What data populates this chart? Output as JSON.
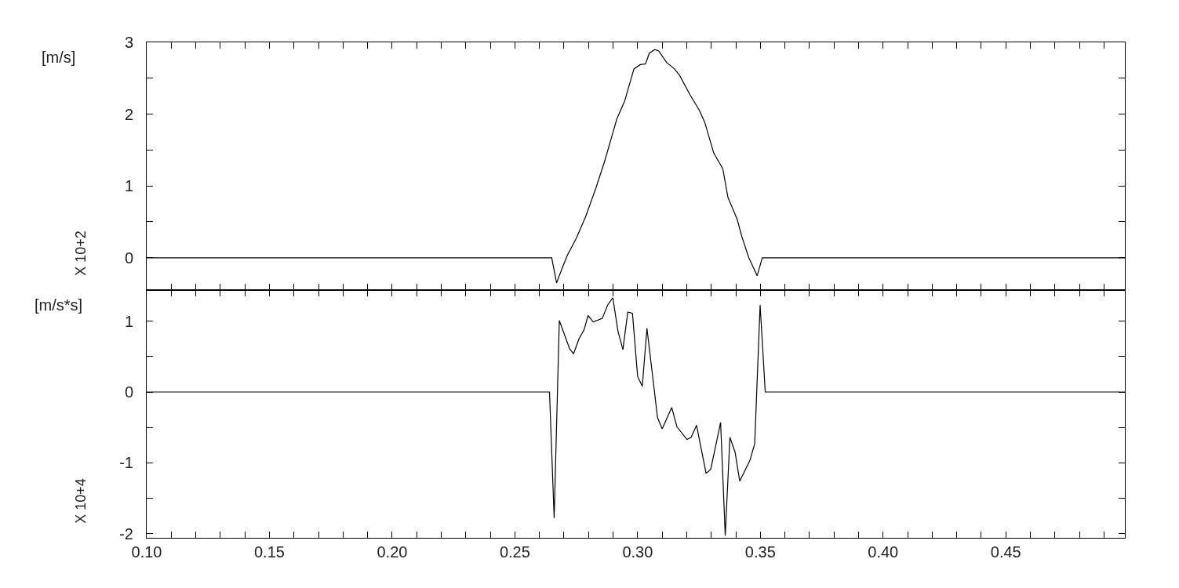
{
  "chart_data": [
    {
      "type": "line",
      "ylabel": "[m/s]",
      "annotations": [
        "X 10+2"
      ],
      "tick_labels": "y",
      "color": "#000000",
      "x": [
        0.1,
        0.265,
        0.267,
        0.2692,
        0.2713,
        0.275,
        0.2788,
        0.283,
        0.2867,
        0.2894,
        0.2915,
        0.2947,
        0.2985,
        0.3011,
        0.3032,
        0.3048,
        0.307,
        0.3086,
        0.3118,
        0.315,
        0.3171,
        0.3215,
        0.3252,
        0.3273,
        0.331,
        0.3347,
        0.3368,
        0.3405,
        0.3426,
        0.3453,
        0.3487,
        0.3508,
        0.4985
      ],
      "values": [
        0,
        0,
        -0.35,
        -0.15,
        0.03,
        0.27,
        0.57,
        0.97,
        1.36,
        1.68,
        1.93,
        2.18,
        2.63,
        2.69,
        2.7,
        2.85,
        2.9,
        2.88,
        2.72,
        2.63,
        2.54,
        2.26,
        2.05,
        1.89,
        1.46,
        1.24,
        0.84,
        0.54,
        0.28,
        0,
        -0.25,
        0,
        0
      ],
      "xlim": [
        0.1,
        0.4985
      ],
      "ylim": [
        -0.45,
        3
      ],
      "xticks": [
        {
          "value": 0.1,
          "label": null
        },
        {
          "value": 0.11,
          "label": null
        },
        {
          "value": 0.12,
          "label": null
        },
        {
          "value": 0.13,
          "label": null
        },
        {
          "value": 0.14,
          "label": null
        },
        {
          "value": 0.15,
          "label": null
        },
        {
          "value": 0.16,
          "label": null
        },
        {
          "value": 0.17,
          "label": null
        },
        {
          "value": 0.18,
          "label": null
        },
        {
          "value": 0.19,
          "label": null
        },
        {
          "value": 0.2,
          "label": null
        },
        {
          "value": 0.21,
          "label": null
        },
        {
          "value": 0.22,
          "label": null
        },
        {
          "value": 0.23,
          "label": null
        },
        {
          "value": 0.24,
          "label": null
        },
        {
          "value": 0.25,
          "label": null
        },
        {
          "value": 0.26,
          "label": null
        },
        {
          "value": 0.27,
          "label": null
        },
        {
          "value": 0.28,
          "label": null
        },
        {
          "value": 0.29,
          "label": null
        },
        {
          "value": 0.3,
          "label": null
        },
        {
          "value": 0.31,
          "label": null
        },
        {
          "value": 0.32,
          "label": null
        },
        {
          "value": 0.33,
          "label": null
        },
        {
          "value": 0.34,
          "label": null
        },
        {
          "value": 0.35,
          "label": null
        },
        {
          "value": 0.36,
          "label": null
        },
        {
          "value": 0.37,
          "label": null
        },
        {
          "value": 0.38,
          "label": null
        },
        {
          "value": 0.39,
          "label": null
        },
        {
          "value": 0.4,
          "label": null
        },
        {
          "value": 0.41,
          "label": null
        },
        {
          "value": 0.42,
          "label": null
        },
        {
          "value": 0.43,
          "label": null
        },
        {
          "value": 0.44,
          "label": null
        },
        {
          "value": 0.45,
          "label": null
        },
        {
          "value": 0.46,
          "label": null
        },
        {
          "value": 0.47,
          "label": null
        },
        {
          "value": 0.48,
          "label": null
        },
        {
          "value": 0.49,
          "label": null
        }
      ],
      "yticks": [
        0,
        {
          "value": 0.5,
          "label": null
        },
        1,
        {
          "value": 1.5,
          "label": null
        },
        2,
        {
          "value": 2.5,
          "label": null
        },
        3
      ]
    },
    {
      "type": "line",
      "ylabel": "[m/s*s]",
      "annotations": [
        "X 10+4"
      ],
      "color": "#000000",
      "x": [
        0.1,
        0.2641,
        0.266,
        0.2681,
        0.2723,
        0.2739,
        0.2761,
        0.2782,
        0.2798,
        0.2819,
        0.2856,
        0.2878,
        0.2899,
        0.292,
        0.294,
        0.296,
        0.2979,
        0.3,
        0.3019,
        0.3038,
        0.3081,
        0.31,
        0.3139,
        0.316,
        0.3201,
        0.3218,
        0.324,
        0.3279,
        0.3298,
        0.3338,
        0.3357,
        0.3376,
        0.3397,
        0.3416,
        0.3458,
        0.3477,
        0.3499,
        0.352,
        0.4985
      ],
      "values": [
        0,
        0,
        -1.78,
        1.01,
        0.61,
        0.54,
        0.75,
        0.88,
        1.08,
        0.99,
        1.04,
        1.23,
        1.33,
        0.86,
        0.6,
        1.13,
        1.11,
        0.22,
        0.08,
        0.9,
        -0.36,
        -0.52,
        -0.22,
        -0.49,
        -0.67,
        -0.64,
        -0.47,
        -1.15,
        -1.09,
        -0.43,
        -2.03,
        -0.64,
        -0.85,
        -1.26,
        -0.96,
        -0.73,
        1.23,
        0,
        0
      ],
      "xlim": [
        0.1,
        0.4985
      ],
      "ylim": [
        -2.06,
        1.44
      ],
      "xticks": [
        {
          "value": 0.1,
          "label": "0.10"
        },
        {
          "value": 0.11,
          "label": null
        },
        {
          "value": 0.12,
          "label": null
        },
        {
          "value": 0.13,
          "label": null
        },
        {
          "value": 0.14,
          "label": null
        },
        {
          "value": 0.15,
          "label": "0.15"
        },
        {
          "value": 0.16,
          "label": null
        },
        {
          "value": 0.17,
          "label": null
        },
        {
          "value": 0.18,
          "label": null
        },
        {
          "value": 0.19,
          "label": null
        },
        {
          "value": 0.2,
          "label": "0.20"
        },
        {
          "value": 0.21,
          "label": null
        },
        {
          "value": 0.22,
          "label": null
        },
        {
          "value": 0.23,
          "label": null
        },
        {
          "value": 0.24,
          "label": null
        },
        {
          "value": 0.25,
          "label": "0.25"
        },
        {
          "value": 0.26,
          "label": null
        },
        {
          "value": 0.27,
          "label": null
        },
        {
          "value": 0.28,
          "label": null
        },
        {
          "value": 0.29,
          "label": null
        },
        {
          "value": 0.3,
          "label": "0.30"
        },
        {
          "value": 0.31,
          "label": null
        },
        {
          "value": 0.32,
          "label": null
        },
        {
          "value": 0.33,
          "label": null
        },
        {
          "value": 0.34,
          "label": null
        },
        {
          "value": 0.35,
          "label": "0.35"
        },
        {
          "value": 0.36,
          "label": null
        },
        {
          "value": 0.37,
          "label": null
        },
        {
          "value": 0.38,
          "label": null
        },
        {
          "value": 0.39,
          "label": null
        },
        {
          "value": 0.4,
          "label": "0.40"
        },
        {
          "value": 0.41,
          "label": null
        },
        {
          "value": 0.42,
          "label": null
        },
        {
          "value": 0.43,
          "label": null
        },
        {
          "value": 0.44,
          "label": null
        },
        {
          "value": 0.45,
          "label": "0.45"
        },
        {
          "value": 0.46,
          "label": null
        },
        {
          "value": 0.47,
          "label": null
        },
        {
          "value": 0.48,
          "label": null
        },
        {
          "value": 0.49,
          "label": null
        }
      ],
      "yticks": [
        -2,
        {
          "value": -1.5,
          "label": null
        },
        -1,
        {
          "value": -0.5,
          "label": null
        },
        0,
        {
          "value": 0.5,
          "label": null
        },
        1
      ]
    }
  ]
}
